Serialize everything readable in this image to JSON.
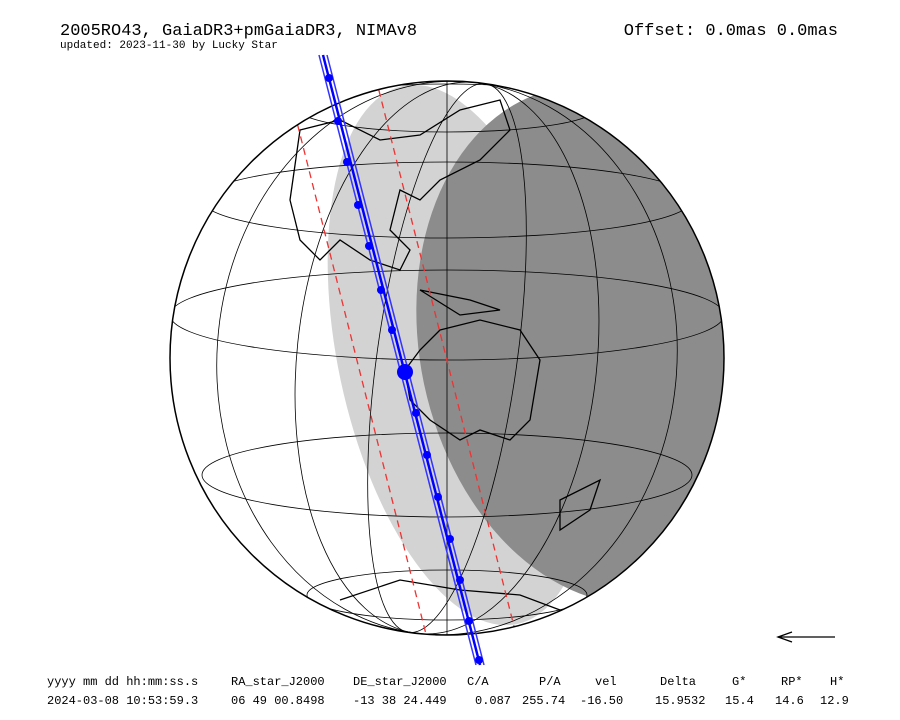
{
  "header": {
    "title": "2005RO43, GaiaDR3+pmGaiaDR3, NIMAv8",
    "subtitle": "updated: 2023-11-30 by Lucky Star",
    "offset": "Offset: 0.0mas 0.0mas"
  },
  "table": {
    "columns": [
      "yyyy mm dd hh:mm:ss.s",
      "RA_star_J2000",
      "DE_star_J2000",
      "C/A",
      "P/A",
      "vel",
      "Delta",
      "G*",
      "RP*",
      "H*"
    ],
    "rows": [
      [
        "2024-03-08 10:53:59.3",
        "06 49 00.8498",
        "-13 38 24.449",
        "0.087",
        "255.74",
        "-16.50",
        "15.9532",
        "15.4",
        "14.6",
        "12.9"
      ]
    ]
  }
}
